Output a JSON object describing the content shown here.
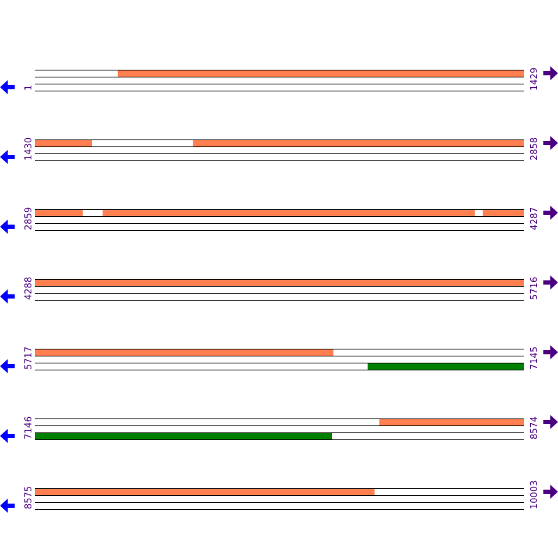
{
  "colors": {
    "forward_feature": "#FF7F50",
    "reverse_feature": "#008000",
    "reverse_arrow": "#0000FF",
    "forward_arrow": "#4B0082",
    "label": "#4B0082",
    "track_line": "#000000"
  },
  "icons": {
    "left": "arrow-left-icon",
    "right": "arrow-right-icon"
  },
  "rows": [
    {
      "start": "1",
      "end": "1429",
      "s": 1,
      "e": 1429,
      "top": [
        [
          243,
          1429
        ]
      ],
      "bottom": []
    },
    {
      "start": "1430",
      "end": "2858",
      "s": 1430,
      "e": 2858,
      "top": [
        [
          1430,
          1597
        ],
        [
          1892,
          2858
        ]
      ],
      "bottom": []
    },
    {
      "start": "2859",
      "end": "4287",
      "s": 2859,
      "e": 4287,
      "top": [
        [
          2859,
          2999
        ],
        [
          3057,
          4144
        ],
        [
          4167,
          4287
        ]
      ],
      "bottom": []
    },
    {
      "start": "4288",
      "end": "5716",
      "s": 4288,
      "e": 5716,
      "top": [
        [
          4288,
          5716
        ]
      ],
      "bottom": []
    },
    {
      "start": "5717",
      "end": "7145",
      "s": 5717,
      "e": 7145,
      "top": [
        [
          5717,
          6589
        ]
      ],
      "bottom": [
        [
          6689,
          7145
        ]
      ]
    },
    {
      "start": "7146",
      "end": "8574",
      "s": 7146,
      "e": 8574,
      "top": [
        [
          8152,
          8574
        ]
      ],
      "bottom": [
        [
          7146,
          8014
        ]
      ]
    },
    {
      "start": "8575",
      "end": "10003",
      "s": 8575,
      "e": 10003,
      "top": [
        [
          8575,
          9567
        ]
      ],
      "bottom": []
    }
  ]
}
